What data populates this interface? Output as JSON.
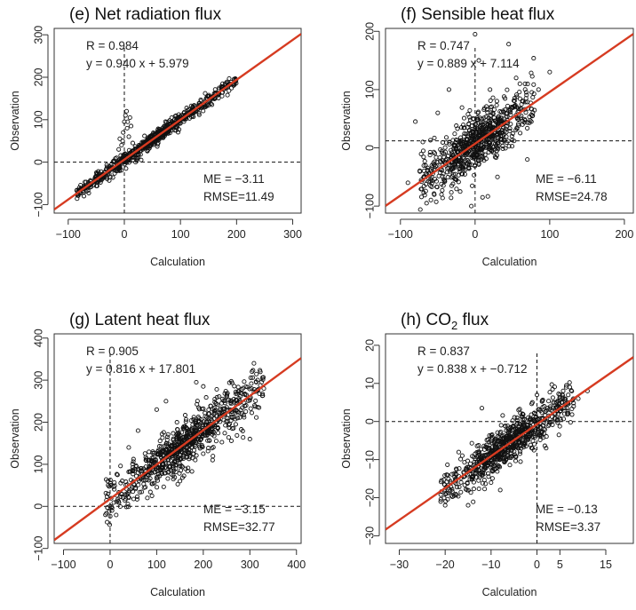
{
  "chart_data": [
    {
      "type": "scatter",
      "title": "(e) Net radiation flux",
      "xlabel": "Calculation",
      "ylabel": "Observation",
      "xlim": [
        -125,
        315
      ],
      "ylim": [
        -120,
        315
      ],
      "xticks": [
        -100,
        0,
        100,
        200,
        300
      ],
      "yticks": [
        -100,
        0,
        100,
        200,
        300
      ],
      "grid": false,
      "ref_lines": {
        "x": 0,
        "y": 0
      },
      "fit": {
        "slope": 0.94,
        "intercept": 5.979,
        "color": "#d63b21"
      },
      "stats": [
        "R = 0.984",
        "y = 0.940 x + 5.979"
      ],
      "errors": [
        "ME = −3.11",
        "RMSE=11.49"
      ],
      "cloud": {
        "x_range": [
          -85,
          200
        ],
        "slope": 0.94,
        "intercept": 5.979,
        "spread": 8,
        "count": 700
      },
      "points": [
        [
          -3,
          50
        ],
        [
          -2,
          70
        ],
        [
          0,
          95
        ],
        [
          2,
          110
        ],
        [
          5,
          80
        ],
        [
          8,
          60
        ],
        [
          10,
          105
        ],
        [
          -5,
          40
        ],
        [
          4,
          120
        ],
        [
          -80,
          -60
        ],
        [
          -40,
          -30
        ],
        [
          -25,
          -35
        ],
        [
          20,
          0
        ],
        [
          30,
          5
        ],
        [
          -10,
          30
        ],
        [
          3,
          -15
        ],
        [
          12,
          85
        ],
        [
          6,
          95
        ],
        [
          -8,
          55
        ],
        [
          15,
          45
        ]
      ]
    },
    {
      "type": "scatter",
      "title": "(f) Sensible heat flux",
      "xlabel": "Calculation",
      "ylabel": "Observation",
      "xlim": [
        -120,
        212
      ],
      "ylim": [
        -112,
        205
      ],
      "xticks": [
        -100,
        0,
        100,
        200
      ],
      "yticks": [
        -100,
        0,
        100,
        200
      ],
      "grid": false,
      "ref_lines": {
        "x": 0,
        "y": 12
      },
      "fit": {
        "slope": 0.889,
        "intercept": 7.114,
        "color": "#d63b21"
      },
      "stats": [
        "R = 0.747",
        "y = 0.889 x + 7.114"
      ],
      "errors": [
        "ME = −6.11",
        "RMSE=24.78"
      ],
      "cloud": {
        "x_range": [
          -75,
          80
        ],
        "slope": 0.889,
        "intercept": 7.114,
        "spread": 24,
        "count": 750
      },
      "points": [
        [
          0,
          195
        ],
        [
          45,
          178
        ],
        [
          100,
          130
        ],
        [
          -80,
          45
        ],
        [
          -65,
          -95
        ],
        [
          -5,
          -100
        ],
        [
          -20,
          -75
        ],
        [
          60,
          110
        ],
        [
          85,
          100
        ],
        [
          -90,
          -60
        ],
        [
          30,
          -50
        ],
        [
          -50,
          60
        ],
        [
          5,
          150
        ],
        [
          -35,
          100
        ],
        [
          70,
          -20
        ],
        [
          55,
          120
        ],
        [
          10,
          -85
        ],
        [
          -70,
          10
        ],
        [
          20,
          100
        ],
        [
          -45,
          -80
        ]
      ]
    },
    {
      "type": "scatter",
      "title": "(g) Latent heat flux",
      "xlabel": "Calculation",
      "ylabel": "Observation",
      "xlim": [
        -120,
        410
      ],
      "ylim": [
        -88,
        410
      ],
      "xticks": [
        -100,
        0,
        100,
        200,
        300,
        400
      ],
      "yticks": [
        -100,
        0,
        100,
        200,
        300,
        400
      ],
      "grid": false,
      "ref_lines": {
        "x": 0,
        "y": 0
      },
      "fit": {
        "slope": 0.816,
        "intercept": 17.801,
        "color": "#d63b21"
      },
      "stats": [
        "R = 0.905",
        "y = 0.816 x + 17.801"
      ],
      "errors": [
        "ME = −3.15",
        "RMSE=32.77"
      ],
      "cloud": {
        "x_range": [
          -10,
          330
        ],
        "slope": 0.816,
        "intercept": 17.801,
        "spread": 30,
        "count": 800
      },
      "points": [
        [
          185,
          295
        ],
        [
          330,
          280
        ],
        [
          310,
          240
        ],
        [
          280,
          270
        ],
        [
          250,
          260
        ],
        [
          -10,
          -20
        ],
        [
          60,
          180
        ],
        [
          100,
          230
        ],
        [
          150,
          60
        ],
        [
          220,
          110
        ],
        [
          300,
          160
        ],
        [
          40,
          140
        ],
        [
          120,
          250
        ],
        [
          200,
          285
        ],
        [
          80,
          20
        ],
        [
          -5,
          60
        ]
      ]
    },
    {
      "type": "scatter",
      "title": "(h) CO",
      "title_sub": "2",
      "title_rest": " flux",
      "xlabel": "Calculation",
      "ylabel": "Observation",
      "xlim": [
        -33,
        21
      ],
      "ylim": [
        -32,
        23
      ],
      "xticks": [
        -30,
        -20,
        -10,
        0,
        5,
        15
      ],
      "yticks": [
        -30,
        -20,
        -10,
        0,
        10,
        20
      ],
      "grid": false,
      "ref_lines": {
        "x": 0,
        "y": 0
      },
      "fit": {
        "slope": 0.838,
        "intercept": -0.712,
        "color": "#d63b21"
      },
      "stats": [
        "R = 0.837",
        "y = 0.838 x + −0.712"
      ],
      "errors": [
        "ME = −0.13",
        "RMSE=3.37"
      ],
      "cloud": {
        "x_range": [
          -21,
          8
        ],
        "slope": 0.838,
        "intercept": -0.712,
        "spread": 2.8,
        "count": 750
      },
      "points": [
        [
          -12,
          3.5
        ],
        [
          11,
          8
        ],
        [
          8,
          4
        ],
        [
          5,
          6
        ],
        [
          3,
          3
        ],
        [
          -20,
          -22
        ],
        [
          -15,
          -22
        ],
        [
          -8,
          -18
        ],
        [
          2,
          -7
        ],
        [
          0,
          7
        ],
        [
          -1,
          5
        ],
        [
          -4,
          3
        ],
        [
          6,
          2
        ],
        [
          9,
          6
        ]
      ]
    }
  ]
}
